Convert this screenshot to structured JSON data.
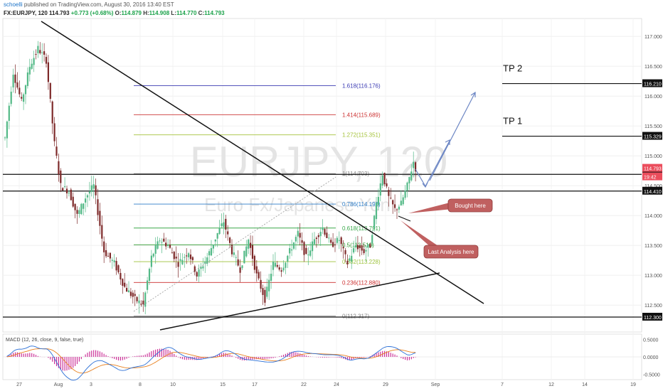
{
  "header": {
    "publisher": "schoelli",
    "published_text": "published on TradingView.com, August 30, 2016 13:40 EST",
    "symbol": "FX:EURJPY, 120",
    "last": "114.793",
    "change": "+0.773 (+0.68%)",
    "o_label": "O:",
    "o": "114.879",
    "h_label": "H:",
    "h": "114.908",
    "l_label": "L:",
    "l": "114.770",
    "c_label": "C:",
    "c": "114.793"
  },
  "watermark": {
    "symbol": "EURJPY, 120",
    "name": "Euro Fx/Japanese Yen"
  },
  "colors": {
    "up": "#53b987",
    "down": "#7e2a2a",
    "price_box": "#eb4d5c",
    "fib_1618": "#3b3bb3",
    "fib_1414": "#cc3333",
    "fib_1272": "#a4c23a",
    "fib_1": "#888888",
    "fib_0786": "#2d7dc8",
    "fib_0618": "#3aa84a",
    "fib_05": "#2f9a2f",
    "fib_0382": "#9cc23a",
    "fib_0236": "#cc2e2e",
    "fib_0": "#888888",
    "arrow": "#6c86c4",
    "callout": "#c06060",
    "macd_line": "#2b6fd6",
    "signal_line": "#e8801e",
    "hist": "#cc3399"
  },
  "chart_data": {
    "type": "candlestick",
    "title": "EURJPY, 120",
    "xlabel": "",
    "ylabel": "",
    "ylim": [
      112.05,
      117.3
    ],
    "x_ticks": [
      "27",
      "Aug",
      "3",
      "8",
      "10",
      "15",
      "17",
      "22",
      "24",
      "29",
      "Sep",
      "7",
      "12",
      "14",
      "19"
    ],
    "y_ticks": [
      "117.000",
      "116.500",
      "116.000",
      "115.500",
      "115.000",
      "114.500",
      "114.000",
      "113.500",
      "113.000",
      "112.500"
    ],
    "anchors": [
      {
        "bar": 0,
        "value": 115.3
      },
      {
        "bar": 4,
        "value": 116.4
      },
      {
        "bar": 8,
        "value": 115.9
      },
      {
        "bar": 12,
        "value": 116.5
      },
      {
        "bar": 16,
        "value": 116.8
      },
      {
        "bar": 20,
        "value": 116.6
      },
      {
        "bar": 24,
        "value": 115.2
      },
      {
        "bar": 27,
        "value": 114.5
      },
      {
        "bar": 31,
        "value": 114.4
      },
      {
        "bar": 35,
        "value": 114.0
      },
      {
        "bar": 39,
        "value": 114.3
      },
      {
        "bar": 43,
        "value": 114.5
      },
      {
        "bar": 48,
        "value": 113.4
      },
      {
        "bar": 53,
        "value": 113.2
      },
      {
        "bar": 58,
        "value": 112.8
      },
      {
        "bar": 63,
        "value": 112.6
      },
      {
        "bar": 67,
        "value": 112.5
      },
      {
        "bar": 71,
        "value": 113.3
      },
      {
        "bar": 75,
        "value": 113.6
      },
      {
        "bar": 79,
        "value": 113.5
      },
      {
        "bar": 84,
        "value": 113.2
      },
      {
        "bar": 89,
        "value": 113.4
      },
      {
        "bar": 93,
        "value": 113.0
      },
      {
        "bar": 98,
        "value": 113.3
      },
      {
        "bar": 103,
        "value": 113.7
      },
      {
        "bar": 106,
        "value": 113.9
      },
      {
        "bar": 110,
        "value": 113.4
      },
      {
        "bar": 114,
        "value": 113.1
      },
      {
        "bar": 118,
        "value": 113.6
      },
      {
        "bar": 122,
        "value": 113.0
      },
      {
        "bar": 126,
        "value": 112.6
      },
      {
        "bar": 130,
        "value": 113.2
      },
      {
        "bar": 134,
        "value": 113.1
      },
      {
        "bar": 138,
        "value": 113.4
      },
      {
        "bar": 142,
        "value": 113.7
      },
      {
        "bar": 146,
        "value": 113.3
      },
      {
        "bar": 150,
        "value": 113.6
      },
      {
        "bar": 154,
        "value": 113.8
      },
      {
        "bar": 158,
        "value": 113.5
      },
      {
        "bar": 162,
        "value": 113.6
      },
      {
        "bar": 166,
        "value": 113.2
      },
      {
        "bar": 170,
        "value": 113.5
      },
      {
        "bar": 174,
        "value": 113.4
      },
      {
        "bar": 177,
        "value": 113.5
      },
      {
        "bar": 180,
        "value": 114.2
      },
      {
        "bar": 183,
        "value": 114.7
      },
      {
        "bar": 186,
        "value": 114.3
      },
      {
        "bar": 189,
        "value": 114.1
      },
      {
        "bar": 192,
        "value": 114.2
      },
      {
        "bar": 195,
        "value": 114.5
      },
      {
        "bar": 198,
        "value": 114.9
      },
      {
        "bar": 199,
        "value": 114.79
      }
    ],
    "fib_levels": [
      {
        "label": "1.618(116.176)",
        "value": 116.176,
        "color": "#3b3bb3"
      },
      {
        "label": "1.414(115.689)",
        "value": 115.689,
        "color": "#cc3333"
      },
      {
        "label": "1.272(115.351)",
        "value": 115.351,
        "color": "#a4c23a"
      },
      {
        "label": "1(114.703)",
        "value": 114.703,
        "color": "#888888"
      },
      {
        "label": "0.786(114.192)",
        "value": 114.192,
        "color": "#2d7dc8"
      },
      {
        "label": "0.618(113.791)",
        "value": 113.791,
        "color": "#3aa84a"
      },
      {
        "label": "0.5(113.510)",
        "value": 113.51,
        "color": "#2f9a2f"
      },
      {
        "label": "0.382(113.228)",
        "value": 113.228,
        "color": "#9cc23a"
      },
      {
        "label": "0.236(112.880)",
        "value": 112.88,
        "color": "#cc2e2e"
      },
      {
        "label": "0(112.317)",
        "value": 112.317,
        "color": "#888888"
      }
    ],
    "horizontal_lines": [
      {
        "value": 114.69,
        "label": "114.690"
      },
      {
        "value": 114.41,
        "label": "114.410"
      },
      {
        "value": 112.3,
        "label": "112.300"
      },
      {
        "value": 116.21,
        "label": "116.210"
      },
      {
        "value": 115.329,
        "label": "115.329"
      }
    ],
    "last_price": {
      "value": 114.793,
      "label": "114.793",
      "countdown": "19:42"
    },
    "targets": [
      {
        "label": "TP 2",
        "value": 116.21
      },
      {
        "label": "TP 1",
        "value": 115.329
      }
    ],
    "callouts": [
      "Bought here",
      "Last Analysis here"
    ],
    "macd": {
      "label": "MACD (12, 26, close, 9, false, true)",
      "y_ticks": [
        "0.5000",
        "0.0000",
        "-0.5000"
      ],
      "ylim": [
        -0.65,
        0.65
      ]
    }
  }
}
